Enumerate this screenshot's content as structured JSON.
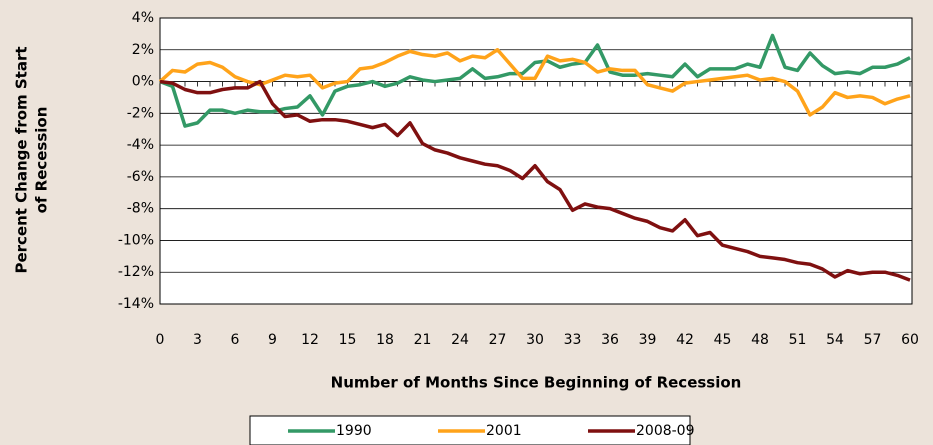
{
  "chart_data": {
    "type": "line",
    "y_label": [
      "Percent Change from Start",
      "of Recession"
    ],
    "x_label": "Number of Months Since Beginning of Recession",
    "x": [
      0,
      1,
      2,
      3,
      4,
      5,
      6,
      7,
      8,
      9,
      10,
      11,
      12,
      13,
      14,
      15,
      16,
      17,
      18,
      19,
      20,
      21,
      22,
      23,
      24,
      25,
      26,
      27,
      28,
      29,
      30,
      31,
      32,
      33,
      34,
      35,
      36,
      37,
      38,
      39,
      40,
      41,
      42,
      43,
      44,
      45,
      46,
      47,
      48,
      49,
      50,
      51,
      52,
      53,
      54,
      55,
      56,
      57,
      58,
      59,
      60
    ],
    "xlim": [
      0,
      60
    ],
    "xticks": [
      0,
      3,
      6,
      9,
      12,
      15,
      18,
      21,
      24,
      27,
      30,
      33,
      36,
      39,
      42,
      45,
      48,
      51,
      54,
      57,
      60
    ],
    "ylim": [
      -14,
      4
    ],
    "yticks": [
      {
        "value": 4,
        "label": "4%"
      },
      {
        "value": 2,
        "label": "2%"
      },
      {
        "value": 0,
        "label": "0%"
      },
      {
        "value": -2,
        "label": "-2%"
      },
      {
        "value": -4,
        "label": "-4%"
      },
      {
        "value": -6,
        "label": "-6%"
      },
      {
        "value": -8,
        "label": "-8%"
      },
      {
        "value": -10,
        "label": "-10%"
      },
      {
        "value": -12,
        "label": "-12%"
      },
      {
        "value": -14,
        "label": "-14%"
      }
    ],
    "grid": true,
    "legend": "bottom",
    "series": [
      {
        "name": "1990",
        "color": "#339966",
        "values": [
          0,
          -0.3,
          -2.8,
          -2.6,
          -1.8,
          -1.8,
          -2.0,
          -1.8,
          -1.9,
          -1.9,
          -1.7,
          -1.6,
          -0.9,
          -2.1,
          -0.6,
          -0.3,
          -0.2,
          0.0,
          -0.3,
          -0.1,
          0.3,
          0.1,
          0.0,
          0.1,
          0.2,
          0.8,
          0.2,
          0.3,
          0.5,
          0.5,
          1.2,
          1.3,
          0.9,
          1.1,
          1.2,
          2.3,
          0.6,
          0.4,
          0.4,
          0.5,
          0.4,
          0.3,
          1.1,
          0.3,
          0.8,
          0.8,
          0.8,
          1.1,
          0.9,
          2.9,
          0.9,
          0.7,
          1.8,
          1.0,
          0.5,
          0.6,
          0.5,
          0.9,
          0.9,
          1.1,
          1.5
        ]
      },
      {
        "name": "2001",
        "color": "#ffa31a",
        "values": [
          0,
          0.7,
          0.6,
          1.1,
          1.2,
          0.9,
          0.3,
          0.0,
          -0.2,
          0.1,
          0.4,
          0.3,
          0.4,
          -0.4,
          -0.1,
          0.0,
          0.8,
          0.9,
          1.2,
          1.6,
          1.9,
          1.7,
          1.6,
          1.8,
          1.3,
          1.6,
          1.5,
          2.0,
          1.1,
          0.2,
          0.2,
          1.6,
          1.3,
          1.4,
          1.2,
          0.6,
          0.8,
          0.7,
          0.7,
          -0.2,
          -0.4,
          -0.6,
          -0.1,
          0.0,
          0.1,
          0.2,
          0.3,
          0.4,
          0.1,
          0.2,
          0.0,
          -0.6,
          -2.1,
          -1.6,
          -0.7,
          -1.0,
          -0.9,
          -1.0,
          -1.4,
          -1.1,
          -0.9
        ]
      },
      {
        "name": "2008-09",
        "color": "#7f1010",
        "values": [
          0,
          -0.1,
          -0.5,
          -0.7,
          -0.7,
          -0.5,
          -0.4,
          -0.4,
          0.0,
          -1.4,
          -2.2,
          -2.1,
          -2.5,
          -2.4,
          -2.4,
          -2.5,
          -2.7,
          -2.9,
          -2.7,
          -3.4,
          -2.6,
          -3.9,
          -4.3,
          -4.5,
          -4.8,
          -5.0,
          -5.2,
          -5.3,
          -5.6,
          -6.1,
          -5.3,
          -6.3,
          -6.8,
          -8.1,
          -7.7,
          -7.9,
          -8.0,
          -8.3,
          -8.6,
          -8.8,
          -9.2,
          -9.4,
          -8.7,
          -9.7,
          -9.5,
          -10.3,
          -10.5,
          -10.7,
          -11.0,
          -11.1,
          -11.2,
          -11.4,
          -11.5,
          -11.8,
          -12.3,
          -11.9,
          -12.1,
          -12.0,
          -12.0,
          -12.2,
          -12.5
        ]
      }
    ]
  }
}
